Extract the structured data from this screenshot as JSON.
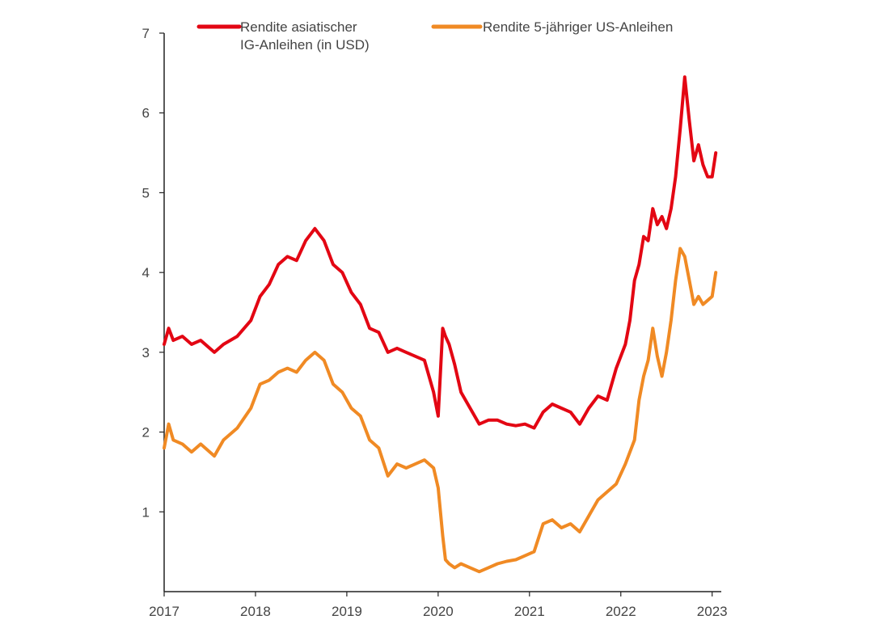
{
  "chart_data": {
    "type": "line",
    "title": "",
    "xlabel": "",
    "ylabel": "",
    "xlim": [
      2017.0,
      2023.1
    ],
    "ylim": [
      0,
      7
    ],
    "x_ticks": [
      2017,
      2018,
      2019,
      2020,
      2021,
      2022,
      2023
    ],
    "x_tick_labels": [
      "2017",
      "2018",
      "2019",
      "2020",
      "2021",
      "2022",
      "2023"
    ],
    "y_ticks": [
      1,
      2,
      3,
      4,
      5,
      6,
      7
    ],
    "y_tick_labels": [
      "1",
      "2",
      "3",
      "4",
      "5",
      "6",
      "7"
    ],
    "grid": false,
    "legend_position": "top",
    "series": [
      {
        "name_lines": [
          "Rendite asiatischer",
          "IG-Anleihen (in USD)"
        ],
        "color": "#e30613",
        "x": [
          2017.0,
          2017.05,
          2017.1,
          2017.2,
          2017.3,
          2017.4,
          2017.55,
          2017.65,
          2017.8,
          2017.95,
          2018.05,
          2018.15,
          2018.25,
          2018.35,
          2018.45,
          2018.55,
          2018.65,
          2018.75,
          2018.85,
          2018.95,
          2019.05,
          2019.15,
          2019.25,
          2019.35,
          2019.45,
          2019.55,
          2019.65,
          2019.75,
          2019.85,
          2019.95,
          2020.0,
          2020.05,
          2020.08,
          2020.12,
          2020.18,
          2020.25,
          2020.35,
          2020.45,
          2020.55,
          2020.65,
          2020.75,
          2020.85,
          2020.95,
          2021.05,
          2021.15,
          2021.25,
          2021.35,
          2021.45,
          2021.55,
          2021.65,
          2021.75,
          2021.85,
          2021.95,
          2022.05,
          2022.1,
          2022.15,
          2022.2,
          2022.25,
          2022.3,
          2022.35,
          2022.4,
          2022.45,
          2022.5,
          2022.55,
          2022.6,
          2022.65,
          2022.7,
          2022.75,
          2022.8,
          2022.85,
          2022.9,
          2022.95,
          2023.0,
          2023.04
        ],
        "y": [
          3.1,
          3.3,
          3.15,
          3.2,
          3.1,
          3.15,
          3.0,
          3.1,
          3.2,
          3.4,
          3.7,
          3.85,
          4.1,
          4.2,
          4.15,
          4.4,
          4.55,
          4.4,
          4.1,
          4.0,
          3.75,
          3.6,
          3.3,
          3.25,
          3.0,
          3.05,
          3.0,
          2.95,
          2.9,
          2.5,
          2.2,
          3.3,
          3.2,
          3.1,
          2.85,
          2.5,
          2.3,
          2.1,
          2.15,
          2.15,
          2.1,
          2.08,
          2.1,
          2.05,
          2.25,
          2.35,
          2.3,
          2.25,
          2.1,
          2.3,
          2.45,
          2.4,
          2.8,
          3.1,
          3.4,
          3.9,
          4.1,
          4.45,
          4.4,
          4.8,
          4.6,
          4.7,
          4.55,
          4.8,
          5.2,
          5.8,
          6.45,
          5.9,
          5.4,
          5.6,
          5.35,
          5.2,
          5.2,
          5.5
        ]
      },
      {
        "name_lines": [
          "Rendite 5-jähriger US-Anleihen"
        ],
        "color": "#f08a24",
        "x": [
          2017.0,
          2017.05,
          2017.1,
          2017.2,
          2017.3,
          2017.4,
          2017.55,
          2017.65,
          2017.8,
          2017.95,
          2018.05,
          2018.15,
          2018.25,
          2018.35,
          2018.45,
          2018.55,
          2018.65,
          2018.75,
          2018.85,
          2018.95,
          2019.05,
          2019.15,
          2019.25,
          2019.35,
          2019.45,
          2019.55,
          2019.65,
          2019.75,
          2019.85,
          2019.95,
          2020.0,
          2020.05,
          2020.08,
          2020.12,
          2020.18,
          2020.25,
          2020.35,
          2020.45,
          2020.55,
          2020.65,
          2020.75,
          2020.85,
          2020.95,
          2021.05,
          2021.15,
          2021.25,
          2021.35,
          2021.45,
          2021.55,
          2021.65,
          2021.75,
          2021.85,
          2021.95,
          2022.05,
          2022.1,
          2022.15,
          2022.2,
          2022.25,
          2022.3,
          2022.35,
          2022.4,
          2022.45,
          2022.5,
          2022.55,
          2022.6,
          2022.65,
          2022.7,
          2022.75,
          2022.8,
          2022.85,
          2022.9,
          2022.95,
          2023.0,
          2023.04
        ],
        "y": [
          1.8,
          2.1,
          1.9,
          1.85,
          1.75,
          1.85,
          1.7,
          1.9,
          2.05,
          2.3,
          2.6,
          2.65,
          2.75,
          2.8,
          2.75,
          2.9,
          3.0,
          2.9,
          2.6,
          2.5,
          2.3,
          2.2,
          1.9,
          1.8,
          1.45,
          1.6,
          1.55,
          1.6,
          1.65,
          1.55,
          1.3,
          0.7,
          0.4,
          0.35,
          0.3,
          0.35,
          0.3,
          0.25,
          0.3,
          0.35,
          0.38,
          0.4,
          0.45,
          0.5,
          0.85,
          0.9,
          0.8,
          0.85,
          0.75,
          0.95,
          1.15,
          1.25,
          1.35,
          1.6,
          1.75,
          1.9,
          2.4,
          2.7,
          2.9,
          3.3,
          2.95,
          2.7,
          3.0,
          3.4,
          3.9,
          4.3,
          4.2,
          3.9,
          3.6,
          3.7,
          3.6,
          3.65,
          3.7,
          4.0
        ]
      }
    ]
  }
}
